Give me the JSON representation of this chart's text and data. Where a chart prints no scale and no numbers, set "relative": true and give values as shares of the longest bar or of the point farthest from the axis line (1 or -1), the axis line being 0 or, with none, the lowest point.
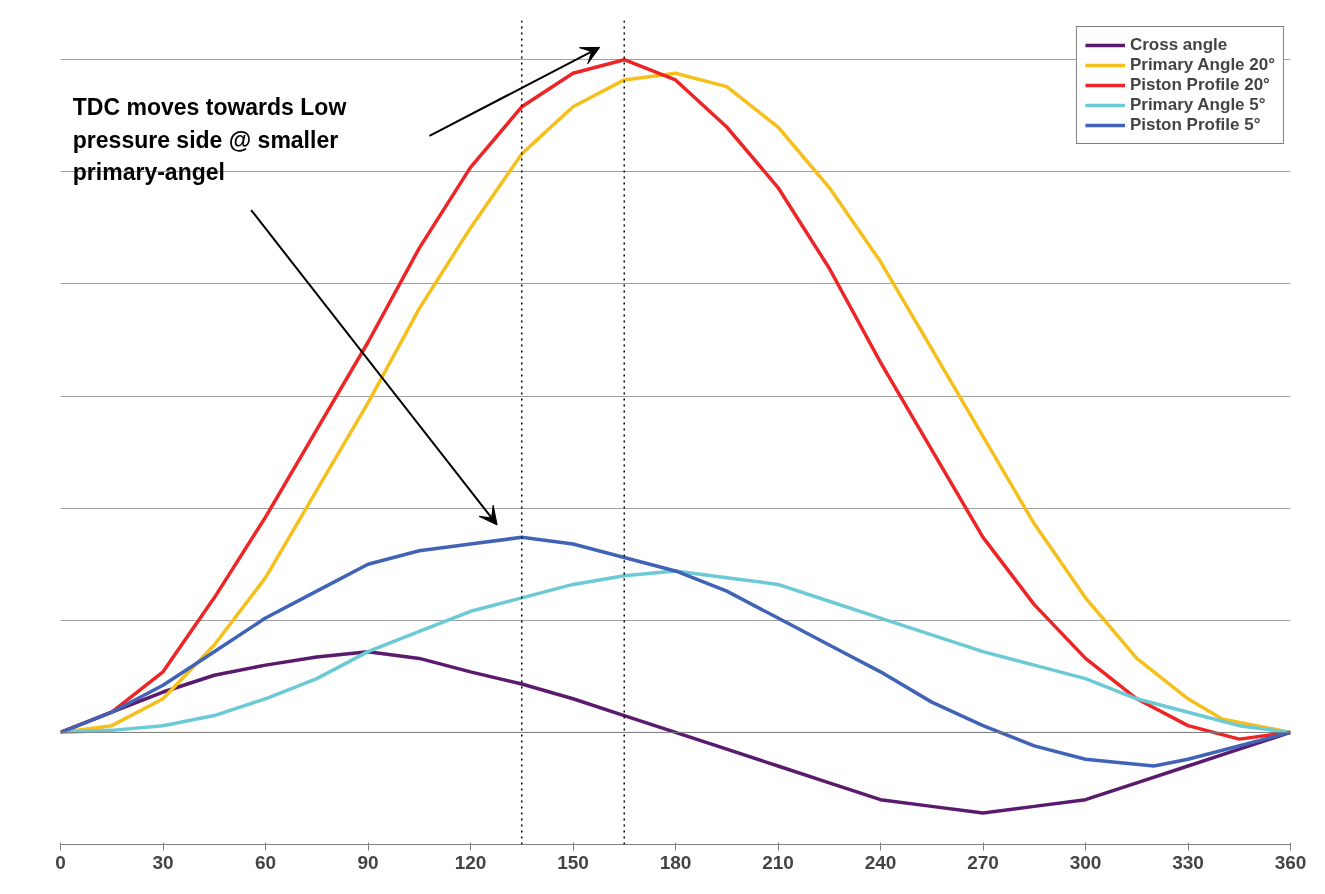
{
  "chart_data": {
    "type": "line",
    "relative": true,
    "xlim": [
      0,
      360
    ],
    "xticks": [
      0,
      30,
      60,
      90,
      120,
      150,
      180,
      210,
      240,
      270,
      300,
      330,
      360
    ],
    "grid": "y",
    "legend": "top right",
    "marker": "none",
    "line_style": "solid",
    "annotations": [
      "TDC moves towards Low pressure side @ smaller primary-angel"
    ],
    "ref_lines": [
      {
        "axis": "x",
        "value": 135,
        "label": null,
        "color": "#000000",
        "line_style": "dotted"
      },
      {
        "axis": "x",
        "value": 165,
        "label": null,
        "color": "#000000",
        "line_style": "dotted"
      }
    ],
    "series": [
      {
        "name": "Cross angle",
        "color": "#5b1a6e",
        "x": [
          0,
          15,
          30,
          45,
          60,
          75,
          90,
          105,
          120,
          135,
          150,
          165,
          180,
          195,
          210,
          225,
          240,
          255,
          270,
          285,
          300,
          315,
          330,
          345,
          360
        ],
        "values": [
          0,
          0.03,
          0.06,
          0.085,
          0.1,
          0.112,
          0.12,
          0.11,
          0.09,
          0.072,
          0.05,
          0.025,
          0,
          -0.025,
          -0.05,
          -0.075,
          -0.1,
          -0.11,
          -0.12,
          -0.11,
          -0.1,
          -0.075,
          -0.05,
          -0.025,
          0
        ]
      },
      {
        "name": "Primary Angle 20°",
        "color": "#f5c01c",
        "x": [
          0,
          15,
          30,
          45,
          60,
          75,
          90,
          105,
          120,
          135,
          150,
          165,
          180,
          195,
          210,
          225,
          240,
          255,
          270,
          285,
          300,
          315,
          330,
          340,
          350,
          360
        ],
        "values": [
          0,
          0.01,
          0.05,
          0.13,
          0.23,
          0.36,
          0.49,
          0.63,
          0.75,
          0.86,
          0.93,
          0.97,
          0.98,
          0.96,
          0.9,
          0.81,
          0.7,
          0.57,
          0.44,
          0.31,
          0.2,
          0.11,
          0.05,
          0.02,
          0.01,
          0
        ]
      },
      {
        "name": "Piston Profile 20°",
        "color": "#ee2526",
        "x": [
          0,
          15,
          30,
          45,
          60,
          75,
          90,
          105,
          120,
          135,
          150,
          165,
          180,
          195,
          210,
          225,
          240,
          255,
          270,
          285,
          300,
          315,
          330,
          345,
          360
        ],
        "values": [
          0,
          0.03,
          0.09,
          0.2,
          0.32,
          0.45,
          0.58,
          0.72,
          0.84,
          0.93,
          0.98,
          1,
          0.97,
          0.9,
          0.81,
          0.69,
          0.55,
          0.42,
          0.29,
          0.19,
          0.11,
          0.05,
          0.01,
          -0.01,
          0
        ]
      },
      {
        "name": "Primary Angle 5°",
        "color": "#6ccad6",
        "x": [
          0,
          15,
          30,
          45,
          60,
          75,
          90,
          105,
          120,
          135,
          150,
          165,
          180,
          195,
          210,
          225,
          240,
          255,
          270,
          285,
          300,
          315,
          330,
          345,
          360
        ],
        "values": [
          0,
          0.003,
          0.01,
          0.025,
          0.05,
          0.08,
          0.12,
          0.15,
          0.18,
          0.2,
          0.22,
          0.233,
          0.24,
          0.23,
          0.22,
          0.195,
          0.17,
          0.145,
          0.12,
          0.1,
          0.08,
          0.05,
          0.03,
          0.01,
          0
        ]
      },
      {
        "name": "Piston Profile 5°",
        "color": "#4063b8",
        "x": [
          0,
          15,
          30,
          45,
          60,
          75,
          90,
          105,
          120,
          135,
          150,
          165,
          180,
          195,
          210,
          225,
          240,
          255,
          270,
          285,
          300,
          320,
          330,
          360
        ],
        "values": [
          0,
          0.03,
          0.07,
          0.12,
          0.17,
          0.21,
          0.25,
          0.27,
          0.28,
          0.29,
          0.28,
          0.26,
          0.24,
          0.21,
          0.17,
          0.13,
          0.09,
          0.045,
          0.01,
          -0.02,
          -0.04,
          -0.05,
          -0.04,
          0
        ]
      }
    ]
  }
}
